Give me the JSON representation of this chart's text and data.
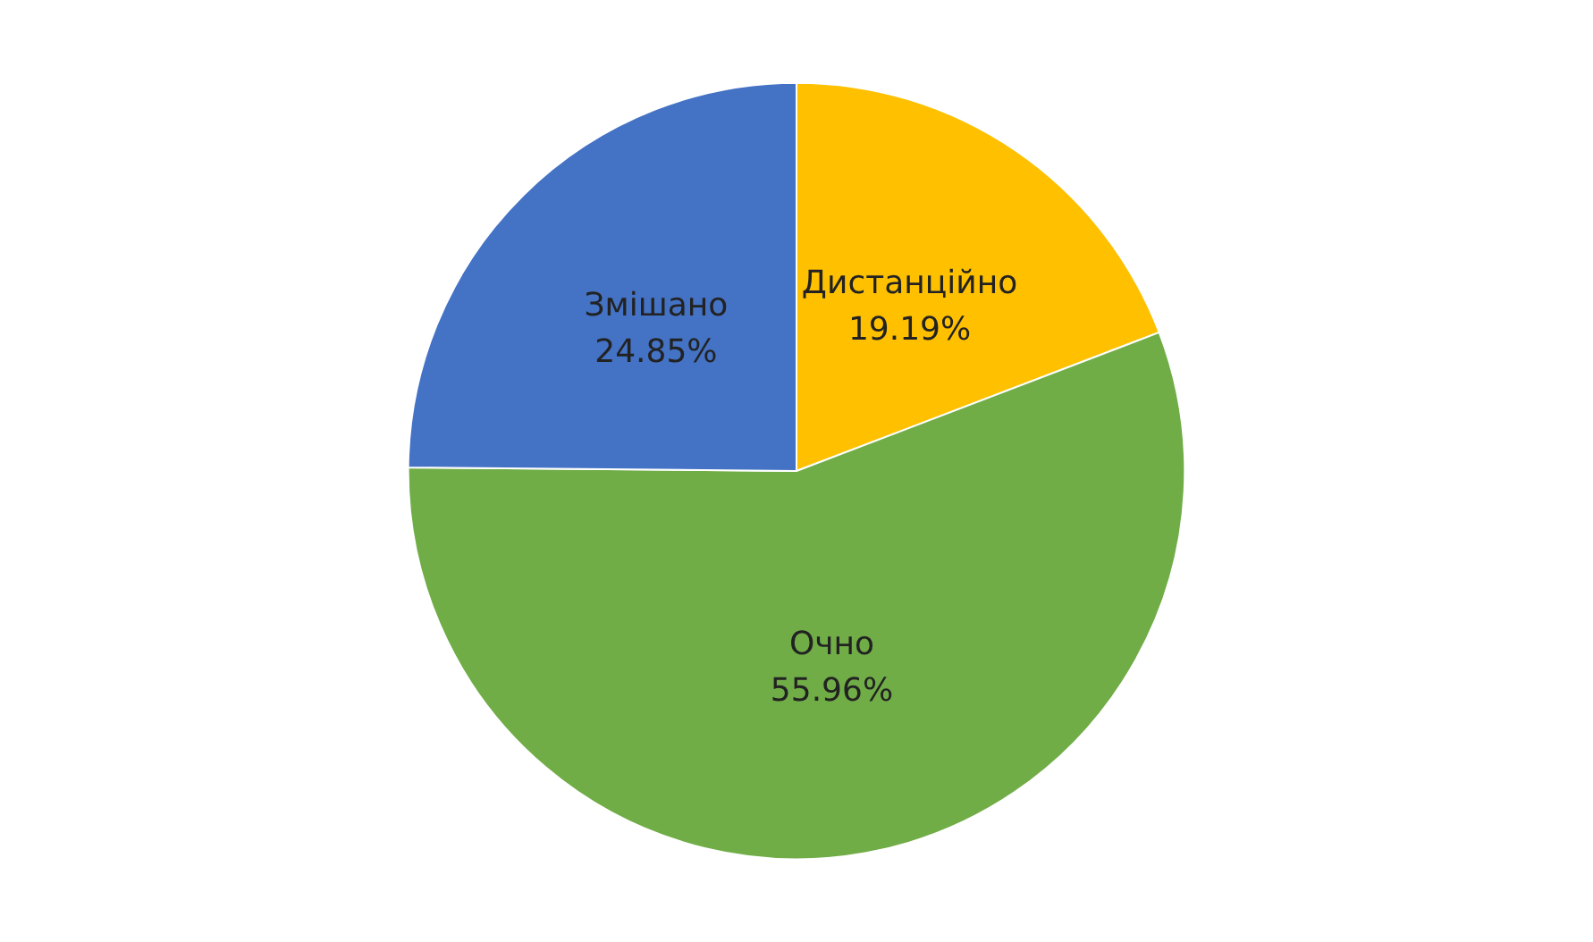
{
  "chart_data": {
    "type": "pie",
    "categories": [
      "Дистанційно",
      "Очно",
      "Змішано"
    ],
    "values": [
      19.19,
      55.96,
      24.85
    ],
    "value_labels": [
      "19.19%",
      "55.96%",
      "24.85%"
    ],
    "colors": [
      "#ffc000",
      "#70ad47",
      "#4472c4"
    ],
    "legend": false
  }
}
